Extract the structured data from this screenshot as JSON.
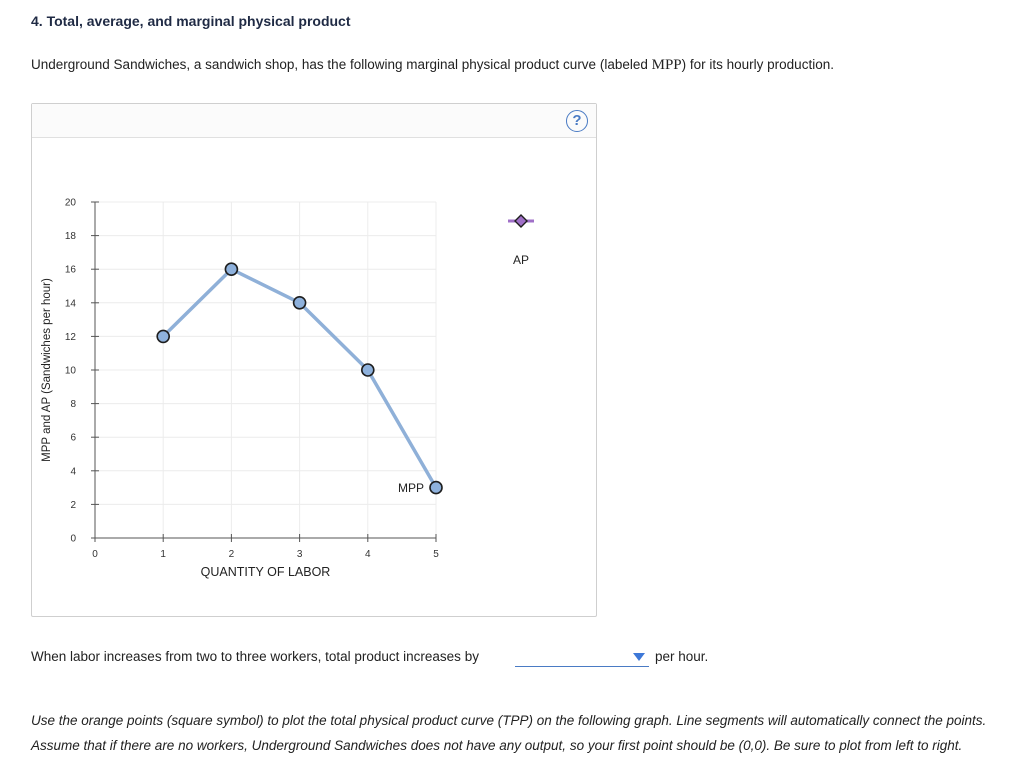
{
  "question": {
    "title": "4. Total, average, and marginal physical product",
    "intro_before": "Underground Sandwiches, a sandwich shop, has the following marginal physical product curve (labeled ",
    "intro_term": "MPP",
    "intro_after": ") for its hourly production."
  },
  "panel": {
    "help_label": "?"
  },
  "chart_data": {
    "type": "line",
    "title": "",
    "xlabel": "QUANTITY OF LABOR",
    "ylabel": "MPP and AP (Sandwiches per hour)",
    "xlim": [
      0,
      5
    ],
    "ylim": [
      0,
      20
    ],
    "x_ticks": [
      0,
      1,
      2,
      3,
      4,
      5
    ],
    "y_ticks": [
      0,
      2,
      4,
      6,
      8,
      10,
      12,
      14,
      16,
      18,
      20
    ],
    "grid": true,
    "series": [
      {
        "name": "MPP",
        "label": "MPP",
        "color": "#8fb0d8",
        "marker_fill": "#8eb1dc",
        "marker": "circle",
        "x": [
          1,
          2,
          3,
          4,
          5
        ],
        "y": [
          12,
          16,
          14,
          10,
          3
        ]
      }
    ],
    "legend_tool": {
      "name": "AP",
      "label": "AP",
      "color": "#a070c8",
      "marker": "diamond"
    }
  },
  "followup": {
    "prompt": "When labor increases from two to three workers, total product increases by",
    "dropdown_value": "",
    "suffix": "per hour."
  },
  "instructions": {
    "text": "Use the orange points (square symbol) to plot the total physical product curve (TPP) on the following graph. Line segments will automatically connect the points. Assume that if there are no workers, Underground Sandwiches does not have any output, so your first point should be (0,0). Be sure to plot from left to right."
  }
}
